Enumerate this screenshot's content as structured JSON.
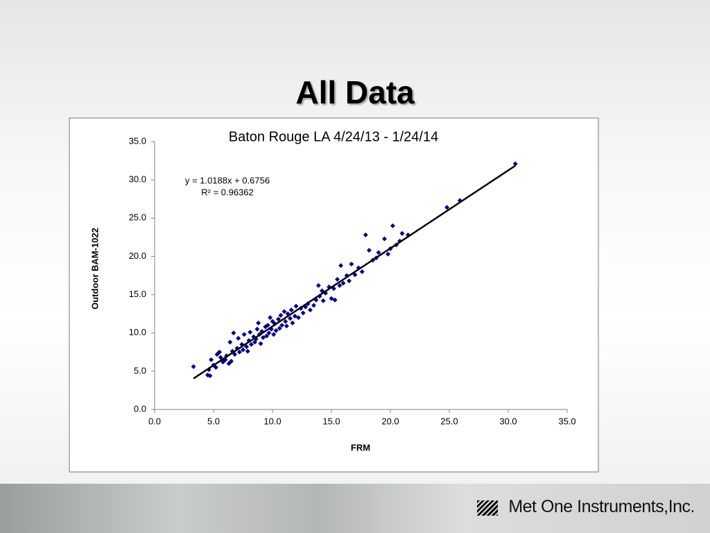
{
  "slide_title": "All Data",
  "logo": "Met One Instruments,Inc.",
  "chart_data": {
    "type": "scatter",
    "title": "Baton Rouge LA 4/24/13 - 1/24/14",
    "xlabel": "FRM",
    "ylabel": "Outdoor BAM-1022",
    "annotations": [
      "y = 1.0188x + 0.6756",
      "R² = 0.96362"
    ],
    "color": "#00008b",
    "grid": false,
    "xlim": [
      0,
      35
    ],
    "ylim": [
      0,
      35
    ],
    "xticks": [
      {
        "value": 0,
        "label": "0.0"
      },
      {
        "value": 5,
        "label": "5.0"
      },
      {
        "value": 10,
        "label": "10.0"
      },
      {
        "value": 15,
        "label": "15.0"
      },
      {
        "value": 20,
        "label": "20.0"
      },
      {
        "value": 25,
        "label": "25.0"
      },
      {
        "value": 30,
        "label": "30.0"
      },
      {
        "value": 35,
        "label": "35.0"
      }
    ],
    "yticks": [
      {
        "value": 0,
        "label": "0.0"
      },
      {
        "value": 5,
        "label": "5.0"
      },
      {
        "value": 10,
        "label": "10.0"
      },
      {
        "value": 15,
        "label": "15.0"
      },
      {
        "value": 20,
        "label": "20.0"
      },
      {
        "value": 25,
        "label": "25.0"
      },
      {
        "value": 30,
        "label": "30.0"
      },
      {
        "value": 35,
        "label": "35.0"
      }
    ],
    "trendline": {
      "x": [
        3.3,
        30.6
      ],
      "y": [
        4.04,
        31.85
      ]
    },
    "x": [
      3.3,
      4.5,
      4.7,
      4.6,
      4.8,
      5.0,
      5.2,
      5.3,
      5.5,
      5.6,
      5.8,
      6.0,
      6.1,
      6.3,
      6.4,
      6.5,
      6.6,
      6.7,
      6.8,
      7.0,
      7.1,
      7.2,
      7.4,
      7.5,
      7.6,
      7.8,
      7.9,
      8.0,
      8.1,
      8.2,
      8.4,
      8.5,
      8.6,
      8.7,
      8.8,
      8.9,
      9.0,
      9.1,
      9.2,
      9.4,
      9.5,
      9.6,
      9.7,
      9.8,
      9.9,
      10.0,
      10.1,
      10.2,
      10.3,
      10.5,
      10.6,
      10.7,
      10.8,
      11.0,
      11.1,
      11.2,
      11.3,
      11.5,
      11.6,
      11.7,
      11.9,
      12.0,
      12.2,
      12.4,
      12.6,
      12.8,
      13.0,
      13.2,
      13.5,
      13.7,
      13.9,
      14.0,
      14.2,
      14.3,
      14.5,
      14.8,
      15.0,
      15.2,
      15.3,
      15.5,
      15.7,
      15.8,
      16.0,
      16.3,
      16.5,
      16.7,
      17.0,
      17.3,
      17.6,
      17.9,
      18.2,
      18.5,
      18.8,
      19.0,
      19.5,
      19.8,
      20.0,
      20.2,
      20.5,
      20.8,
      21.0,
      21.5,
      24.8,
      25.9,
      30.6
    ],
    "values": [
      5.6,
      4.5,
      4.4,
      5.2,
      6.5,
      5.8,
      5.5,
      7.2,
      7.5,
      6.8,
      6.2,
      6.5,
      7.0,
      6.0,
      8.8,
      6.3,
      7.6,
      10.0,
      7.2,
      8.0,
      9.3,
      7.5,
      8.5,
      7.8,
      9.8,
      8.2,
      7.6,
      9.0,
      10.1,
      8.5,
      9.5,
      8.8,
      9.2,
      10.5,
      11.3,
      9.8,
      8.6,
      10.2,
      9.4,
      10.8,
      9.6,
      11.0,
      10.0,
      12.0,
      10.5,
      11.5,
      9.8,
      11.2,
      10.3,
      11.8,
      10.6,
      12.3,
      11.0,
      12.8,
      11.5,
      10.9,
      12.5,
      11.9,
      13.0,
      11.3,
      12.2,
      13.5,
      12.0,
      13.2,
      12.6,
      13.4,
      13.8,
      13.0,
      13.6,
      14.3,
      16.2,
      14.8,
      15.5,
      14.2,
      15.2,
      16.0,
      14.5,
      15.8,
      14.3,
      17.0,
      16.2,
      18.8,
      16.5,
      17.5,
      16.8,
      19.0,
      17.6,
      18.5,
      18.0,
      22.8,
      20.8,
      19.5,
      19.8,
      20.5,
      22.3,
      20.3,
      21.0,
      24.0,
      21.5,
      22.0,
      23.0,
      22.8,
      26.4,
      27.3,
      32.1
    ]
  }
}
